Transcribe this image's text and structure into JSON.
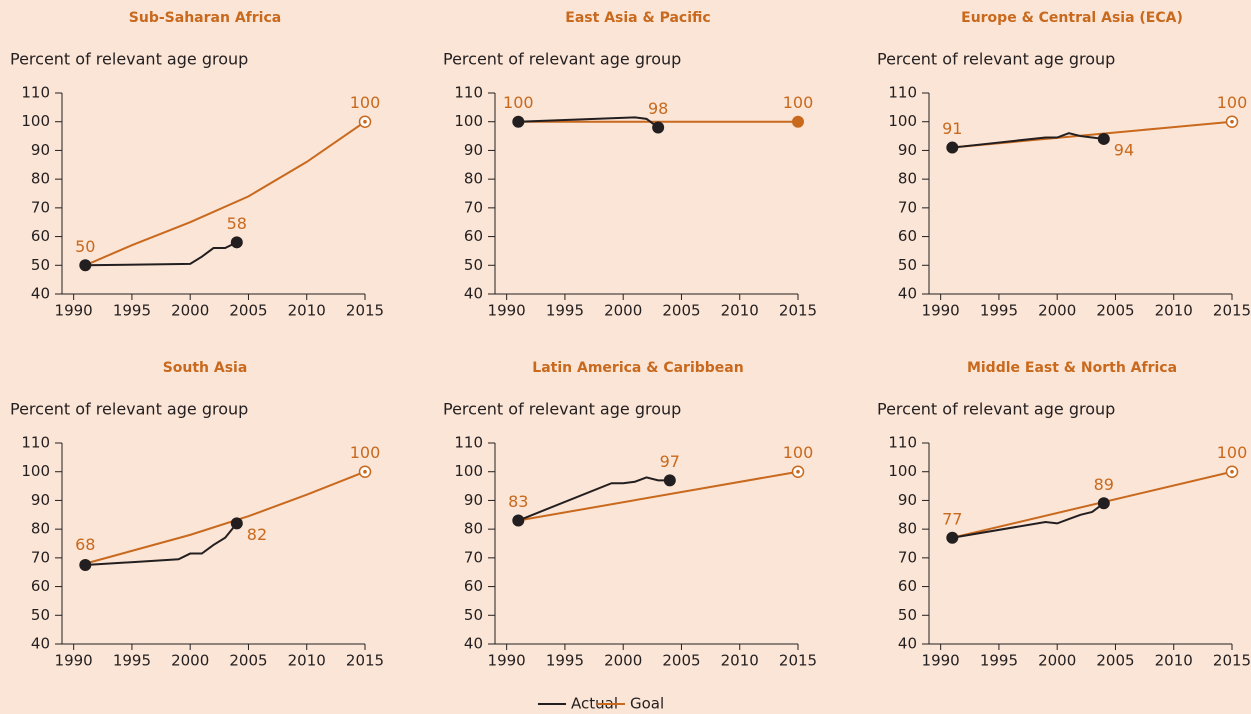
{
  "chart_data": [
    {
      "type": "line",
      "title": "Sub-Saharan Africa",
      "ylabel": "Percent of relevant age group",
      "xlim": [
        1989,
        2015
      ],
      "xticks": [
        1990,
        1995,
        2000,
        2005,
        2010,
        2015
      ],
      "ylim": [
        40,
        110
      ],
      "yticks": [
        40,
        50,
        60,
        70,
        80,
        90,
        100,
        110
      ],
      "goal_marker": "target",
      "series": [
        {
          "name": "Actual",
          "color": "#231f20",
          "x": [
            1991,
            2000,
            2001,
            2002,
            2003,
            2004
          ],
          "values": [
            50,
            50.5,
            53,
            56,
            56,
            58
          ],
          "value_labels": [
            null,
            null,
            null,
            null,
            null,
            "58"
          ]
        },
        {
          "name": "Goal",
          "color": "#c8691e",
          "x": [
            1991,
            1995,
            2000,
            2005,
            2010,
            2015
          ],
          "values": [
            50,
            57,
            65,
            74,
            86,
            100
          ],
          "value_labels": [
            "50",
            null,
            null,
            null,
            null,
            "100"
          ]
        }
      ]
    },
    {
      "type": "line",
      "title": "East Asia & Pacific",
      "ylabel": "Percent of relevant age group",
      "xlim": [
        1989,
        2015
      ],
      "xticks": [
        1990,
        1995,
        2000,
        2005,
        2010,
        2015
      ],
      "ylim": [
        40,
        110
      ],
      "yticks": [
        40,
        50,
        60,
        70,
        80,
        90,
        100,
        110
      ],
      "goal_marker": "filled",
      "series": [
        {
          "name": "Actual",
          "color": "#231f20",
          "x": [
            1991,
            2001,
            2002,
            2003
          ],
          "values": [
            100,
            101.5,
            101,
            98
          ],
          "value_labels": [
            "100",
            null,
            null,
            "98"
          ]
        },
        {
          "name": "Goal",
          "color": "#c8691e",
          "x": [
            1991,
            2015
          ],
          "values": [
            100,
            100
          ],
          "value_labels": [
            null,
            "100"
          ]
        }
      ]
    },
    {
      "type": "line",
      "title": "Europe & Central Asia (ECA)",
      "ylabel": "Percent of relevant age group",
      "xlim": [
        1989,
        2015
      ],
      "xticks": [
        1990,
        1995,
        2000,
        2005,
        2010,
        2015
      ],
      "ylim": [
        40,
        110
      ],
      "yticks": [
        40,
        50,
        60,
        70,
        80,
        90,
        100,
        110
      ],
      "goal_marker": "target",
      "series": [
        {
          "name": "Actual",
          "color": "#231f20",
          "x": [
            1991,
            1999,
            2000,
            2001,
            2002,
            2003,
            2004
          ],
          "values": [
            91,
            94.5,
            94.5,
            96,
            95,
            94.5,
            94
          ],
          "value_labels": [
            null,
            null,
            null,
            null,
            null,
            null,
            "94"
          ]
        },
        {
          "name": "Goal",
          "color": "#c8691e",
          "x": [
            1991,
            2015
          ],
          "values": [
            91,
            100
          ],
          "value_labels": [
            "91",
            "100"
          ]
        }
      ]
    },
    {
      "type": "line",
      "title": "South Asia",
      "ylabel": "Percent of relevant age group",
      "xlim": [
        1989,
        2015
      ],
      "xticks": [
        1990,
        1995,
        2000,
        2005,
        2010,
        2015
      ],
      "ylim": [
        40,
        110
      ],
      "yticks": [
        40,
        50,
        60,
        70,
        80,
        90,
        100,
        110
      ],
      "goal_marker": "target",
      "series": [
        {
          "name": "Actual",
          "color": "#231f20",
          "x": [
            1991,
            1999,
            2000,
            2001,
            2002,
            2003,
            2004
          ],
          "values": [
            67.5,
            69.5,
            71.5,
            71.5,
            74.5,
            77,
            82
          ],
          "value_labels": [
            null,
            null,
            null,
            null,
            null,
            null,
            "82"
          ]
        },
        {
          "name": "Goal",
          "color": "#c8691e",
          "x": [
            1991,
            2000,
            2005,
            2010,
            2015
          ],
          "values": [
            68,
            78,
            84.5,
            92,
            100
          ],
          "value_labels": [
            "68",
            null,
            null,
            null,
            "100"
          ]
        }
      ]
    },
    {
      "type": "line",
      "title": "Latin America & Caribbean",
      "ylabel": "Percent of relevant age group",
      "xlim": [
        1989,
        2015
      ],
      "xticks": [
        1990,
        1995,
        2000,
        2005,
        2010,
        2015
      ],
      "ylim": [
        40,
        110
      ],
      "yticks": [
        40,
        50,
        60,
        70,
        80,
        90,
        100,
        110
      ],
      "goal_marker": "target",
      "series": [
        {
          "name": "Actual",
          "color": "#231f20",
          "x": [
            1991,
            1999,
            2000,
            2001,
            2002,
            2003,
            2004
          ],
          "values": [
            83,
            96,
            96,
            96.5,
            98,
            97,
            97
          ],
          "value_labels": [
            null,
            null,
            null,
            null,
            null,
            null,
            "97"
          ]
        },
        {
          "name": "Goal",
          "color": "#c8691e",
          "x": [
            1991,
            2015
          ],
          "values": [
            83,
            100
          ],
          "value_labels": [
            "83",
            "100"
          ]
        }
      ]
    },
    {
      "type": "line",
      "title": "Middle East & North Africa",
      "ylabel": "Percent of relevant age group",
      "xlim": [
        1989,
        2015
      ],
      "xticks": [
        1990,
        1995,
        2000,
        2005,
        2010,
        2015
      ],
      "ylim": [
        40,
        110
      ],
      "yticks": [
        40,
        50,
        60,
        70,
        80,
        90,
        100,
        110
      ],
      "goal_marker": "target",
      "series": [
        {
          "name": "Actual",
          "color": "#231f20",
          "x": [
            1991,
            1999,
            2000,
            2001,
            2002,
            2003,
            2004
          ],
          "values": [
            77,
            82.5,
            82,
            83.5,
            85,
            86,
            89
          ],
          "value_labels": [
            null,
            null,
            null,
            null,
            null,
            null,
            "89"
          ]
        },
        {
          "name": "Goal",
          "color": "#c8691e",
          "x": [
            1991,
            2015
          ],
          "values": [
            77,
            100
          ],
          "value_labels": [
            "77",
            "100"
          ]
        }
      ]
    }
  ]
}
